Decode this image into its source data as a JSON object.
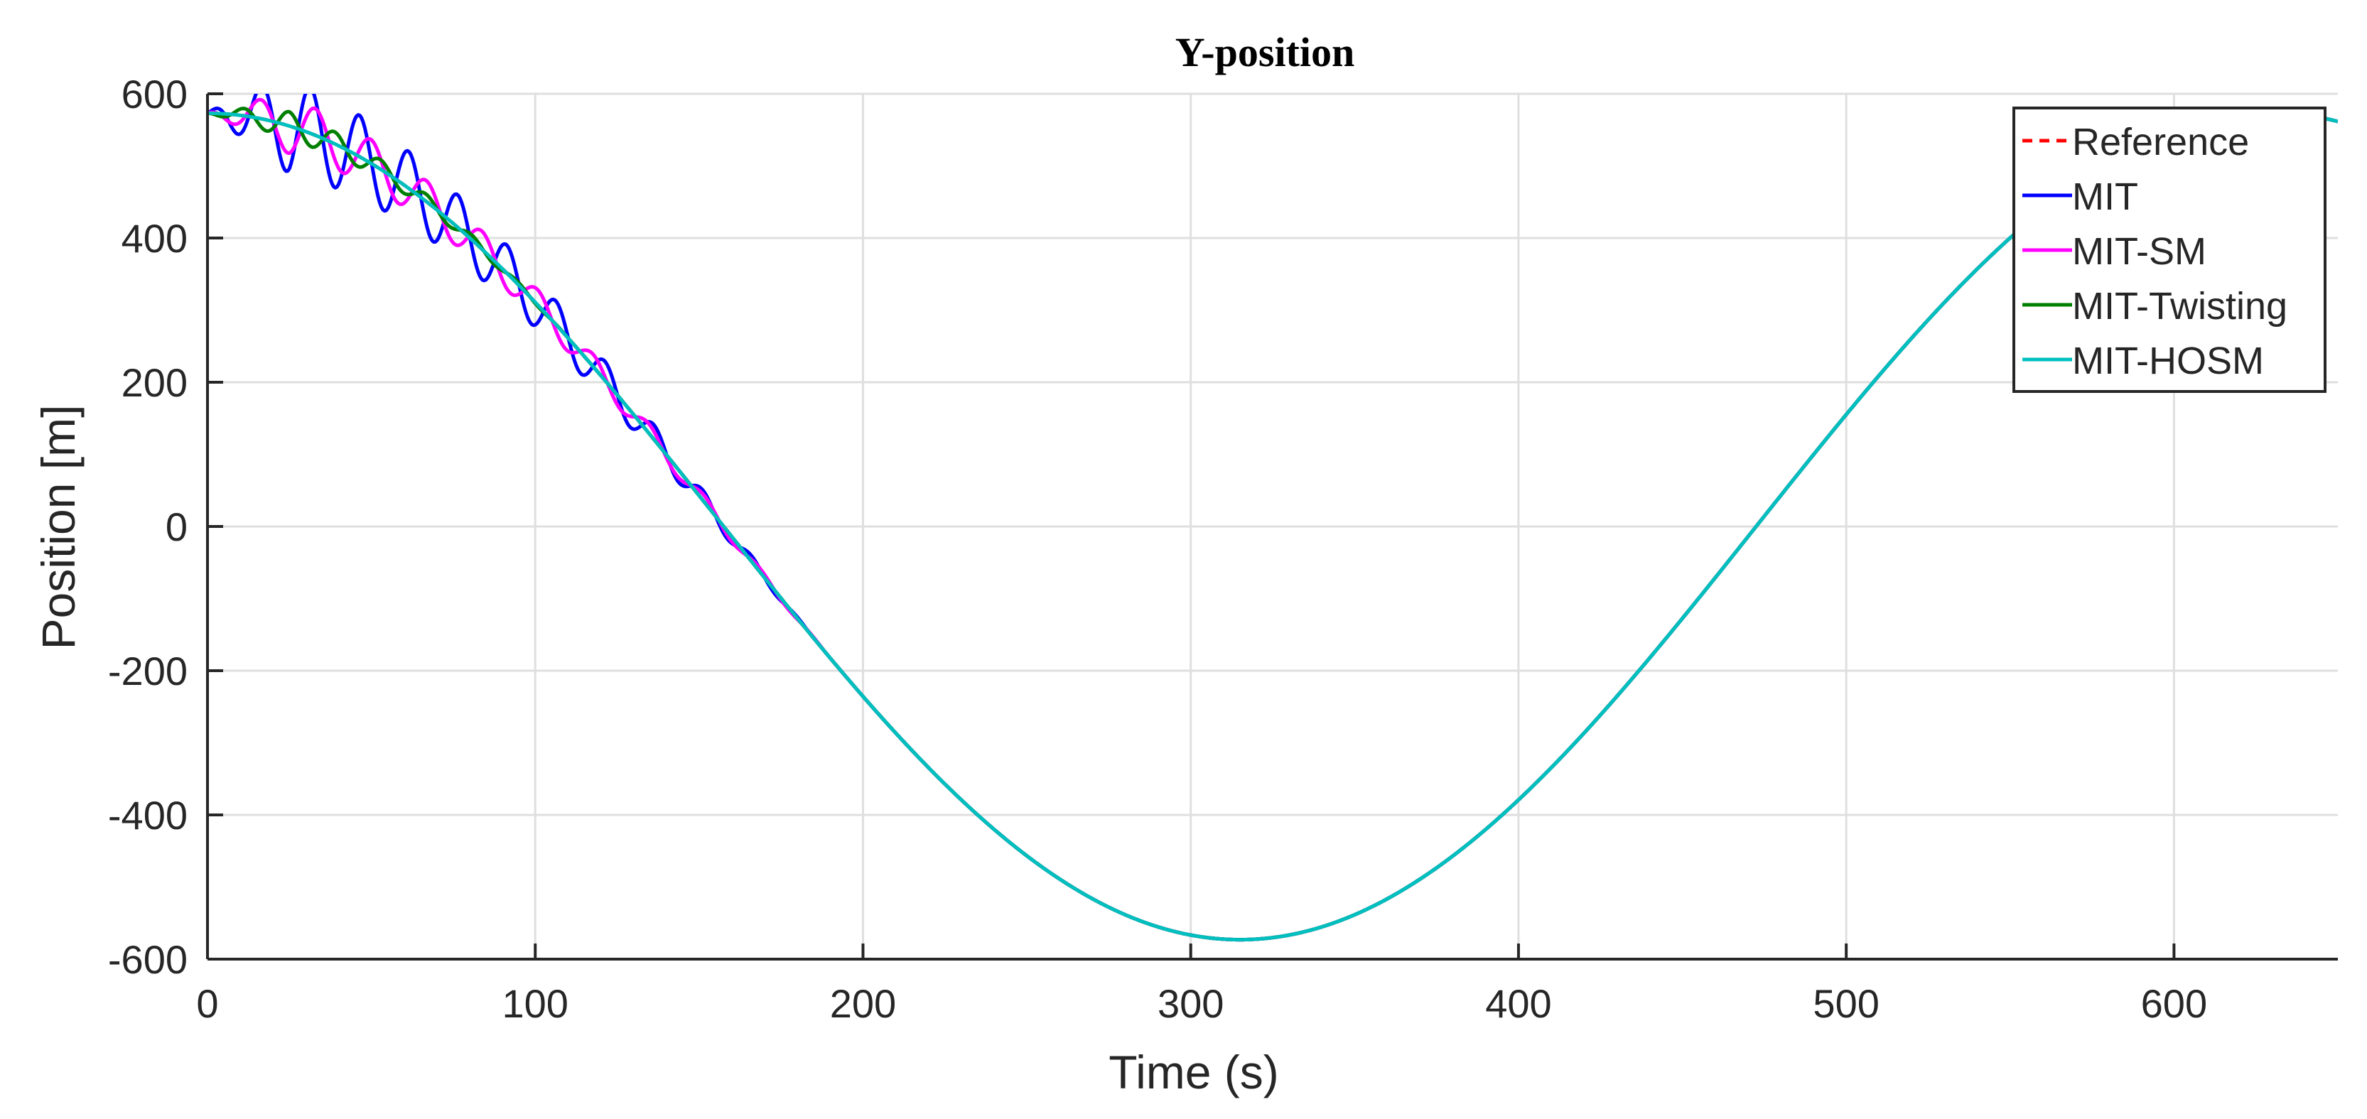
{
  "chart_data": {
    "type": "line",
    "title": "Y-position",
    "xlabel": "Time (s)",
    "ylabel": "Position [m]",
    "xlim": [
      0,
      650
    ],
    "ylim": [
      -600,
      600
    ],
    "xticks": [
      0,
      100,
      200,
      300,
      400,
      500,
      600
    ],
    "yticks": [
      -600,
      -400,
      -200,
      0,
      200,
      400,
      600
    ],
    "xtick_labels": [
      "0",
      "100",
      "200",
      "300",
      "400",
      "500",
      "600"
    ],
    "ytick_labels": [
      "-600",
      "-400",
      "-200",
      "0",
      "200",
      "400",
      "600"
    ],
    "grid": true,
    "legend_position": "top-right",
    "reference_model": {
      "amplitude": 573,
      "period_s": 630,
      "form": "y(t) = A * cos(2*pi*t / period)"
    },
    "series": [
      {
        "name": "Reference",
        "color": "#ff0000",
        "style": "dashed",
        "osc_amp": 0,
        "osc_period_s": 0,
        "osc_end_s": 0
      },
      {
        "name": "MIT",
        "color": "#0000ff",
        "style": "solid",
        "osc_amp": 48,
        "osc_period_s": 15,
        "osc_end_s": 185
      },
      {
        "name": "MIT-SM",
        "color": "#ff00ff",
        "style": "solid",
        "osc_amp": 28,
        "osc_period_s": 17,
        "osc_end_s": 190
      },
      {
        "name": "MIT-Twisting",
        "color": "#007f00",
        "style": "solid",
        "osc_amp": 16,
        "osc_period_s": 14,
        "osc_end_s": 110
      },
      {
        "name": "MIT-HOSM",
        "color": "#00bfbf",
        "style": "solid",
        "osc_amp": 0,
        "osc_period_s": 0,
        "osc_end_s": 0
      }
    ]
  }
}
